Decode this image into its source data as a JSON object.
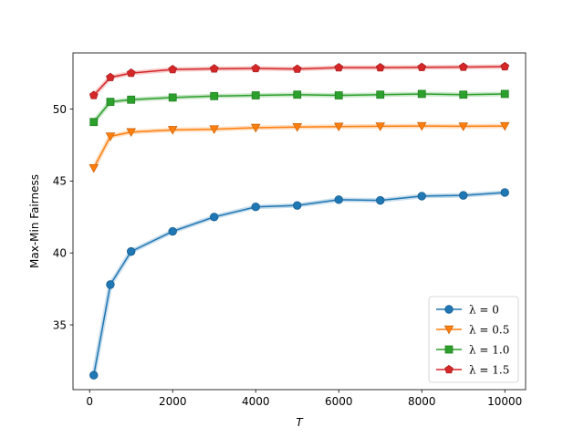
{
  "chart_data": {
    "type": "line",
    "title": "",
    "xlabel": "T",
    "ylabel": "Max-Min Fairness",
    "xlim": [
      -400,
      10500
    ],
    "ylim": [
      30.5,
      53.9
    ],
    "xticks": [
      0,
      2000,
      4000,
      6000,
      8000,
      10000
    ],
    "yticks": [
      35,
      40,
      45,
      50
    ],
    "grid": false,
    "legend_position": "lower-right",
    "x": [
      100,
      500,
      1000,
      2000,
      3000,
      4000,
      5000,
      6000,
      7000,
      8000,
      9000,
      10000
    ],
    "series": [
      {
        "name": "λ = 0",
        "color": "#1f77b4",
        "marker": "circle",
        "values": [
          31.5,
          37.8,
          40.1,
          41.5,
          42.5,
          43.2,
          43.3,
          43.7,
          43.65,
          43.95,
          44.0,
          44.2
        ]
      },
      {
        "name": "λ = 0.5",
        "color": "#ff7f0e",
        "marker": "triangle-down",
        "values": [
          45.9,
          48.1,
          48.4,
          48.55,
          48.6,
          48.7,
          48.75,
          48.78,
          48.8,
          48.82,
          48.8,
          48.82
        ]
      },
      {
        "name": "λ = 1.0",
        "color": "#2ca02c",
        "marker": "square",
        "values": [
          49.1,
          50.5,
          50.65,
          50.8,
          50.9,
          50.95,
          51.0,
          50.95,
          51.0,
          51.05,
          51.0,
          51.05
        ]
      },
      {
        "name": "λ = 1.5",
        "color": "#d62728",
        "marker": "pentagon",
        "values": [
          50.95,
          52.2,
          52.5,
          52.75,
          52.8,
          52.82,
          52.78,
          52.88,
          52.88,
          52.9,
          52.92,
          52.95
        ]
      }
    ]
  }
}
